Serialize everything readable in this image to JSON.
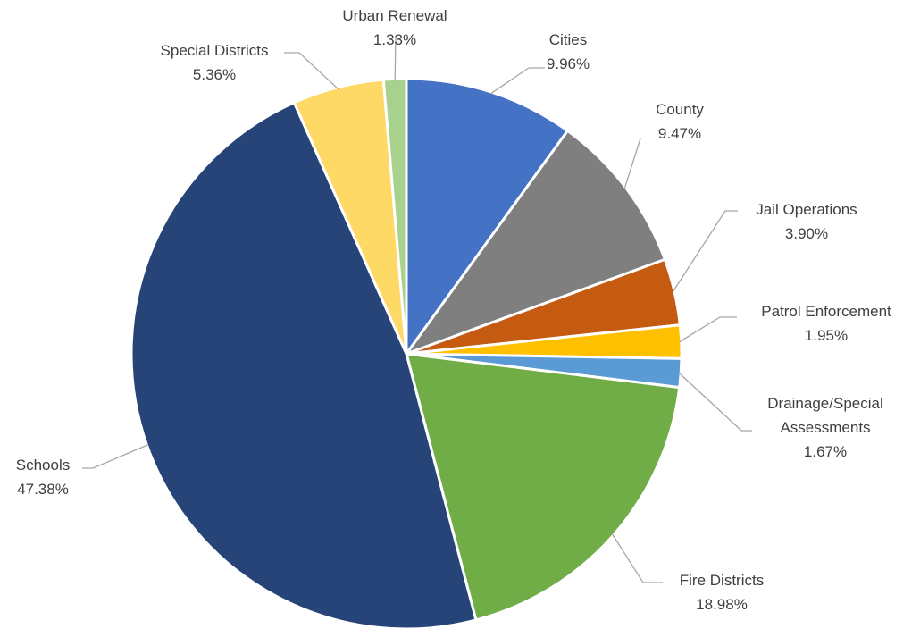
{
  "chart_data": {
    "type": "pie",
    "title": "",
    "start_angle_deg": 0,
    "direction": "clockwise",
    "unit": "%",
    "slices": [
      {
        "name": "Cities",
        "value": 9.96,
        "display": "9.96%",
        "color": "#4472c4"
      },
      {
        "name": "County",
        "value": 9.47,
        "display": "9.47%",
        "color": "#7f7f7f"
      },
      {
        "name": "Jail Operations",
        "value": 3.9,
        "display": "3.90%",
        "color": "#c55a11"
      },
      {
        "name": "Patrol Enforcement",
        "value": 1.95,
        "display": "1.95%",
        "color": "#ffc000"
      },
      {
        "name": "Drainage/Special Assessments",
        "display_lines": [
          "Drainage/Special",
          "Assessments"
        ],
        "value": 1.67,
        "display": "1.67%",
        "color": "#5b9bd5"
      },
      {
        "name": "Fire Districts",
        "value": 18.98,
        "display": "18.98%",
        "color": "#70ad47"
      },
      {
        "name": "Schools",
        "value": 47.38,
        "display": "47.38%",
        "color": "#264478"
      },
      {
        "name": "Special Districts",
        "value": 5.36,
        "display": "5.36%",
        "color": "#ffd966"
      },
      {
        "name": "Urban Renewal",
        "value": 1.33,
        "display": "1.33%",
        "color": "#a9d18e"
      }
    ],
    "legend": "none",
    "data_labels": "outside with leader lines"
  }
}
